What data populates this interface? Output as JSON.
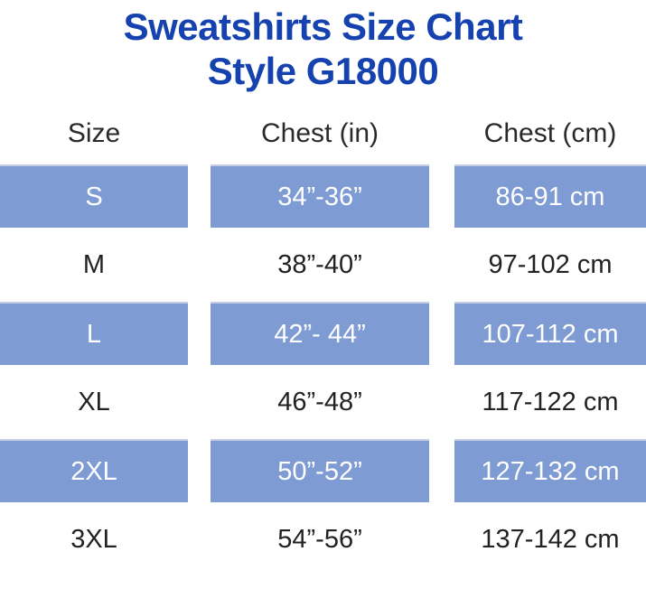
{
  "title": {
    "line1": "Sweatshirts Size Chart",
    "line2": "Style G18000"
  },
  "chart_data": {
    "type": "table",
    "title": "Sweatshirts Size Chart Style G18000",
    "columns": [
      "Size",
      "Chest (in)",
      "Chest (cm)"
    ],
    "rows": [
      [
        "S",
        "34”-36”",
        "86-91 cm"
      ],
      [
        "M",
        "38”-40”",
        "97-102 cm"
      ],
      [
        "L",
        "42”- 44”",
        "107-112 cm"
      ],
      [
        "XL",
        "46”-48”",
        "117-122 cm"
      ],
      [
        "2XL",
        "50”-52”",
        "127-132 cm"
      ],
      [
        "3XL",
        "54”-56”",
        "137-142 cm"
      ]
    ],
    "highlighted_rows": [
      "S",
      "L",
      "2XL"
    ],
    "layout": "three separated column bands, alternating blue highlight rows starting with first row"
  },
  "colors": {
    "title_blue": "#1542af",
    "row_highlight_blue": "#7e9bd3",
    "highlight_text": "#ffffff",
    "body_text": "#222222",
    "background": "#ffffff"
  }
}
